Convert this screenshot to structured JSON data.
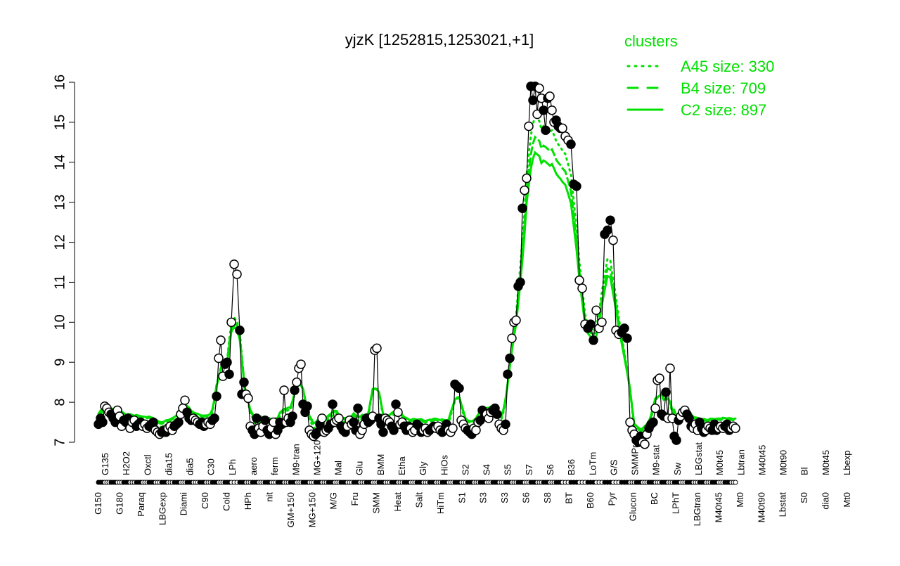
{
  "chart_data": {
    "type": "line",
    "title": "yjzK [1252815,1253021,+1]",
    "xlabel": "",
    "ylabel": "",
    "ylim": [
      7,
      16
    ],
    "yticks": [
      7,
      8,
      9,
      10,
      11,
      12,
      13,
      14,
      15,
      16
    ],
    "grid": false,
    "legend": {
      "title": "clusters",
      "position": "top-right",
      "color": "#00e000",
      "entries": [
        {
          "label": "A45 size: 330",
          "style": "dotted"
        },
        {
          "label": "B4 size: 709",
          "style": "dashed"
        },
        {
          "label": "C2 size: 897",
          "style": "solid"
        }
      ]
    },
    "x_tick_labels_bottom": [
      "G150",
      "G180",
      "Paraq",
      "LBGexp",
      "Diami",
      "C90",
      "Cold",
      "HPh",
      "nit",
      "GM+150",
      "MG+150",
      "M/G",
      "Fru",
      "SMM",
      "Heat",
      "Salt",
      "HiTm",
      "S1",
      "S3",
      "S3",
      "S6",
      "S8",
      "BT",
      "B60",
      "Pyr",
      "Glucon",
      "BC",
      "LPhT",
      "LBGtran",
      "M40t45",
      "Mt0",
      "M40t90",
      "Lbstat",
      "S0",
      "dia0",
      "Mt0"
    ],
    "x_tick_labels_top": [
      "G135",
      "H2O2",
      "Oxctl",
      "dia15",
      "dia5",
      "C30",
      "LPh",
      "aero",
      "ferm",
      "M9-tran",
      "MG+120",
      "Mal",
      "Glu",
      "BMM",
      "Etha",
      "Gly",
      "HiOs",
      "S2",
      "S4",
      "S5",
      "S7",
      "S6",
      "B36",
      "LoTm",
      "G/S",
      "SMMPr",
      "M9-stat",
      "Sw",
      "LBGstat",
      "M0t45",
      "Lbtran",
      "M40t45",
      "M0t90",
      "Bl",
      "M0t45",
      "Lbexp"
    ],
    "series": [
      {
        "name": "expression",
        "color": "#000000",
        "points": [
          [
            140,
            7.45
          ],
          [
            143,
            7.6
          ],
          [
            146,
            7.5
          ],
          [
            149,
            7.9
          ],
          [
            152,
            7.85
          ],
          [
            155,
            7.75
          ],
          [
            158,
            7.7
          ],
          [
            161,
            7.6
          ],
          [
            164,
            7.5
          ],
          [
            167,
            7.8
          ],
          [
            170,
            7.65
          ],
          [
            173,
            7.4
          ],
          [
            176,
            7.55
          ],
          [
            179,
            7.5
          ],
          [
            182,
            7.6
          ],
          [
            185,
            7.35
          ],
          [
            188,
            7.5
          ],
          [
            191,
            7.55
          ],
          [
            194,
            7.4
          ],
          [
            197,
            7.45
          ],
          [
            200,
            7.5
          ],
          [
            203,
            7.4
          ],
          [
            206,
            7.45
          ],
          [
            209,
            7.35
          ],
          [
            212,
            7.4
          ],
          [
            215,
            7.45
          ],
          [
            218,
            7.5
          ],
          [
            221,
            7.3
          ],
          [
            224,
            7.25
          ],
          [
            227,
            7.2
          ],
          [
            230,
            7.25
          ],
          [
            233,
            7.3
          ],
          [
            236,
            7.25
          ],
          [
            239,
            7.35
          ],
          [
            242,
            7.4
          ],
          [
            245,
            7.3
          ],
          [
            248,
            7.4
          ],
          [
            251,
            7.45
          ],
          [
            254,
            7.5
          ],
          [
            257,
            7.7
          ],
          [
            260,
            7.85
          ],
          [
            263,
            8.05
          ],
          [
            266,
            7.75
          ],
          [
            269,
            7.6
          ],
          [
            272,
            7.55
          ],
          [
            275,
            7.6
          ],
          [
            278,
            7.55
          ],
          [
            281,
            7.5
          ],
          [
            284,
            7.45
          ],
          [
            287,
            7.5
          ],
          [
            290,
            7.4
          ],
          [
            293,
            7.45
          ],
          [
            296,
            7.5
          ],
          [
            299,
            7.45
          ],
          [
            302,
            7.55
          ],
          [
            305,
            7.6
          ],
          [
            308,
            8.15
          ],
          [
            311,
            9.1
          ],
          [
            314,
            9.55
          ],
          [
            317,
            8.65
          ],
          [
            320,
            8.95
          ],
          [
            323,
            9.0
          ],
          [
            326,
            8.7
          ],
          [
            329,
            10.0
          ],
          [
            333,
            11.45
          ],
          [
            337,
            11.2
          ],
          [
            341,
            9.8
          ],
          [
            344,
            8.2
          ],
          [
            347,
            8.5
          ],
          [
            350,
            8.2
          ],
          [
            353,
            8.1
          ],
          [
            356,
            7.4
          ],
          [
            359,
            7.3
          ],
          [
            362,
            7.2
          ],
          [
            365,
            7.6
          ],
          [
            368,
            7.35
          ],
          [
            371,
            7.25
          ],
          [
            374,
            7.4
          ],
          [
            377,
            7.55
          ],
          [
            380,
            7.3
          ],
          [
            383,
            7.2
          ],
          [
            386,
            7.35
          ],
          [
            389,
            7.5
          ],
          [
            392,
            7.2
          ],
          [
            395,
            7.3
          ],
          [
            398,
            7.5
          ],
          [
            401,
            7.45
          ],
          [
            404,
            8.3
          ],
          [
            407,
            7.5
          ],
          [
            410,
            7.6
          ],
          [
            413,
            7.5
          ],
          [
            416,
            7.65
          ],
          [
            419,
            8.3
          ],
          [
            422,
            8.5
          ],
          [
            425,
            8.85
          ],
          [
            428,
            8.95
          ],
          [
            431,
            7.95
          ],
          [
            434,
            7.75
          ],
          [
            437,
            7.9
          ],
          [
            440,
            7.3
          ],
          [
            443,
            7.2
          ],
          [
            446,
            7.15
          ],
          [
            449,
            7.2
          ],
          [
            452,
            7.25
          ],
          [
            455,
            7.45
          ],
          [
            458,
            7.6
          ],
          [
            461,
            7.25
          ],
          [
            464,
            7.3
          ],
          [
            467,
            7.35
          ],
          [
            470,
            7.45
          ],
          [
            473,
            7.95
          ],
          [
            476,
            7.5
          ],
          [
            479,
            7.55
          ],
          [
            482,
            7.6
          ],
          [
            485,
            7.4
          ],
          [
            488,
            7.3
          ],
          [
            491,
            7.25
          ],
          [
            494,
            7.4
          ],
          [
            497,
            7.55
          ],
          [
            500,
            7.45
          ],
          [
            503,
            7.5
          ],
          [
            506,
            7.3
          ],
          [
            509,
            7.85
          ],
          [
            512,
            7.2
          ],
          [
            515,
            7.3
          ],
          [
            518,
            7.45
          ],
          [
            521,
            7.6
          ],
          [
            524,
            7.5
          ],
          [
            527,
            7.55
          ],
          [
            530,
            7.65
          ],
          [
            533,
            9.3
          ],
          [
            536,
            9.35
          ],
          [
            539,
            7.6
          ],
          [
            542,
            7.45
          ],
          [
            545,
            7.25
          ],
          [
            548,
            7.6
          ],
          [
            551,
            7.55
          ],
          [
            554,
            7.5
          ],
          [
            557,
            7.4
          ],
          [
            560,
            7.3
          ],
          [
            563,
            7.95
          ],
          [
            566,
            7.75
          ],
          [
            569,
            7.45
          ],
          [
            572,
            7.5
          ],
          [
            575,
            7.4
          ],
          [
            578,
            7.3
          ],
          [
            581,
            7.4
          ],
          [
            584,
            7.35
          ],
          [
            587,
            7.25
          ],
          [
            590,
            7.3
          ],
          [
            593,
            7.45
          ],
          [
            596,
            7.4
          ],
          [
            599,
            7.25
          ],
          [
            602,
            7.3
          ],
          [
            605,
            7.35
          ],
          [
            608,
            7.25
          ],
          [
            611,
            7.3
          ],
          [
            614,
            7.35
          ],
          [
            617,
            7.4
          ],
          [
            620,
            7.35
          ],
          [
            623,
            7.4
          ],
          [
            626,
            7.3
          ],
          [
            629,
            7.25
          ],
          [
            632,
            7.3
          ],
          [
            635,
            7.45
          ],
          [
            638,
            7.3
          ],
          [
            641,
            7.25
          ],
          [
            644,
            7.35
          ],
          [
            647,
            8.45
          ],
          [
            650,
            8.4
          ],
          [
            653,
            8.35
          ],
          [
            656,
            7.55
          ],
          [
            659,
            7.45
          ],
          [
            662,
            7.35
          ],
          [
            665,
            7.3
          ],
          [
            668,
            7.25
          ],
          [
            671,
            7.2
          ],
          [
            674,
            7.35
          ],
          [
            677,
            7.3
          ],
          [
            680,
            7.5
          ],
          [
            683,
            7.55
          ],
          [
            686,
            7.8
          ],
          [
            689,
            7.65
          ],
          [
            692,
            7.7
          ],
          [
            695,
            7.6
          ],
          [
            698,
            7.75
          ],
          [
            701,
            7.8
          ],
          [
            704,
            7.85
          ],
          [
            707,
            7.7
          ],
          [
            710,
            7.45
          ],
          [
            713,
            7.35
          ],
          [
            716,
            7.3
          ],
          [
            719,
            7.45
          ],
          [
            722,
            8.7
          ],
          [
            725,
            9.1
          ],
          [
            728,
            9.6
          ],
          [
            731,
            10.0
          ],
          [
            734,
            10.05
          ],
          [
            737,
            10.9
          ],
          [
            740,
            11.0
          ],
          [
            743,
            12.85
          ],
          [
            746,
            13.3
          ],
          [
            749,
            13.6
          ],
          [
            752,
            14.9
          ],
          [
            755,
            15.9
          ],
          [
            758,
            15.55
          ],
          [
            761,
            15.9
          ],
          [
            764,
            15.2
          ],
          [
            767,
            15.85
          ],
          [
            770,
            15.6
          ],
          [
            773,
            15.3
          ],
          [
            776,
            14.8
          ],
          [
            779,
            15.6
          ],
          [
            782,
            15.65
          ],
          [
            785,
            15.3
          ],
          [
            788,
            15.0
          ],
          [
            791,
            15.05
          ],
          [
            794,
            14.9
          ],
          [
            797,
            14.85
          ],
          [
            800,
            14.85
          ],
          [
            804,
            14.65
          ],
          [
            808,
            14.55
          ],
          [
            812,
            14.45
          ],
          [
            816,
            13.45
          ],
          [
            820,
            13.4
          ],
          [
            824,
            11.05
          ],
          [
            828,
            10.85
          ],
          [
            832,
            9.95
          ],
          [
            836,
            9.85
          ],
          [
            840,
            9.95
          ],
          [
            844,
            9.55
          ],
          [
            848,
            10.3
          ],
          [
            852,
            9.85
          ],
          [
            856,
            10.0
          ],
          [
            860,
            12.2
          ],
          [
            864,
            12.3
          ],
          [
            868,
            12.55
          ],
          [
            872,
            12.05
          ],
          [
            876,
            9.8
          ],
          [
            880,
            9.7
          ],
          [
            884,
            9.75
          ],
          [
            888,
            9.85
          ],
          [
            892,
            9.6
          ],
          [
            896,
            7.5
          ],
          [
            899,
            7.3
          ],
          [
            902,
            7.2
          ],
          [
            905,
            7.05
          ],
          [
            908,
            7.0
          ],
          [
            911,
            7.15
          ],
          [
            914,
            7.0
          ],
          [
            917,
            6.95
          ],
          [
            920,
            7.2
          ],
          [
            923,
            7.35
          ],
          [
            926,
            7.45
          ],
          [
            929,
            7.5
          ],
          [
            932,
            7.85
          ],
          [
            935,
            8.55
          ],
          [
            938,
            8.6
          ],
          [
            941,
            7.7
          ],
          [
            944,
            7.65
          ],
          [
            947,
            8.25
          ],
          [
            950,
            7.6
          ],
          [
            953,
            8.85
          ],
          [
            956,
            7.6
          ],
          [
            959,
            7.15
          ],
          [
            962,
            7.05
          ],
          [
            965,
            7.55
          ],
          [
            968,
            7.65
          ],
          [
            971,
            7.75
          ],
          [
            974,
            7.8
          ],
          [
            977,
            7.7
          ],
          [
            980,
            7.6
          ],
          [
            983,
            7.4
          ],
          [
            986,
            7.35
          ],
          [
            989,
            7.45
          ],
          [
            992,
            7.3
          ],
          [
            995,
            7.5
          ],
          [
            998,
            7.35
          ],
          [
            1001,
            7.25
          ],
          [
            1004,
            7.3
          ],
          [
            1007,
            7.4
          ],
          [
            1010,
            7.35
          ],
          [
            1013,
            7.3
          ],
          [
            1016,
            7.45
          ],
          [
            1019,
            7.3
          ],
          [
            1022,
            7.35
          ],
          [
            1025,
            7.4
          ],
          [
            1028,
            7.35
          ],
          [
            1031,
            7.4
          ],
          [
            1034,
            7.45
          ],
          [
            1037,
            7.3
          ],
          [
            1040,
            7.35
          ],
          [
            1043,
            7.4
          ],
          [
            1046,
            7.35
          ]
        ]
      }
    ],
    "cluster_series": [
      {
        "name": "A45 size: 330",
        "style": "dotted"
      },
      {
        "name": "B4 size: 709",
        "style": "dashed"
      },
      {
        "name": "C2 size: 897",
        "style": "solid"
      }
    ]
  }
}
